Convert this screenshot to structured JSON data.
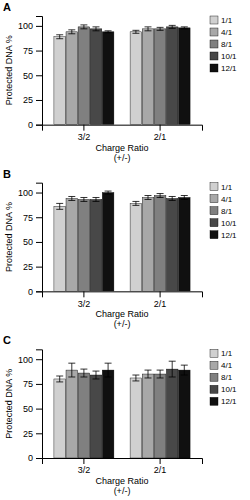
{
  "chart_data": [
    {
      "type": "bar",
      "title": "A",
      "categories": [
        "3/2",
        "2/1"
      ],
      "series": [
        {
          "name": "1/1",
          "color": "#d0d0d0",
          "values": [
            89,
            94
          ],
          "errors": [
            2,
            1.5
          ]
        },
        {
          "name": "4/1",
          "color": "#a8a8a8",
          "values": [
            94,
            97
          ],
          "errors": [
            2,
            2
          ]
        },
        {
          "name": "8/1",
          "color": "#808080",
          "values": [
            99,
            97
          ],
          "errors": [
            2,
            1.5
          ]
        },
        {
          "name": "10/1",
          "color": "#484848",
          "values": [
            97,
            99
          ],
          "errors": [
            2,
            1.5
          ]
        },
        {
          "name": "12/1",
          "color": "#101010",
          "values": [
            94,
            98
          ],
          "errors": [
            1,
            1
          ]
        }
      ],
      "xlabel": "Charge Ratio\n(+/-)",
      "ylabel": "Protected DNA %",
      "ylim": [
        0,
        110
      ],
      "yticks": [
        0,
        25,
        50,
        75,
        100
      ],
      "grid": false,
      "legend": "right"
    },
    {
      "type": "bar",
      "title": "B",
      "categories": [
        "3/2",
        "2/1"
      ],
      "series": [
        {
          "name": "1/1",
          "color": "#d0d0d0",
          "values": [
            86,
            89
          ],
          "errors": [
            3,
            2
          ]
        },
        {
          "name": "4/1",
          "color": "#a8a8a8",
          "values": [
            94,
            95
          ],
          "errors": [
            2,
            2
          ]
        },
        {
          "name": "8/1",
          "color": "#808080",
          "values": [
            93,
            97
          ],
          "errors": [
            2,
            2
          ]
        },
        {
          "name": "10/1",
          "color": "#484848",
          "values": [
            93,
            94
          ],
          "errors": [
            2,
            2
          ]
        },
        {
          "name": "12/1",
          "color": "#101010",
          "values": [
            100,
            95
          ],
          "errors": [
            1.5,
            2
          ]
        }
      ],
      "xlabel": "Charge Ratio\n(+/-)",
      "ylabel": "Protected DNA %",
      "ylim": [
        0,
        110
      ],
      "yticks": [
        0,
        25,
        50,
        75,
        100
      ],
      "grid": false,
      "legend": "right"
    },
    {
      "type": "bar",
      "title": "C",
      "categories": [
        "3/2",
        "2/1"
      ],
      "series": [
        {
          "name": "1/1",
          "color": "#d0d0d0",
          "values": [
            80,
            81
          ],
          "errors": [
            3,
            3
          ]
        },
        {
          "name": "4/1",
          "color": "#a8a8a8",
          "values": [
            89,
            85
          ],
          "errors": [
            7,
            4
          ]
        },
        {
          "name": "8/1",
          "color": "#808080",
          "values": [
            86,
            85
          ],
          "errors": [
            4,
            4
          ]
        },
        {
          "name": "10/1",
          "color": "#484848",
          "values": [
            84,
            90
          ],
          "errors": [
            4,
            8
          ]
        },
        {
          "name": "12/1",
          "color": "#101010",
          "values": [
            89,
            89
          ],
          "errors": [
            7,
            5
          ]
        }
      ],
      "xlabel": "Charge Ratio\n(+/-)",
      "ylabel": "Protected DNA %",
      "ylim": [
        0,
        110
      ],
      "yticks": [
        0,
        25,
        50,
        75,
        100
      ],
      "grid": false,
      "legend": "right"
    }
  ]
}
